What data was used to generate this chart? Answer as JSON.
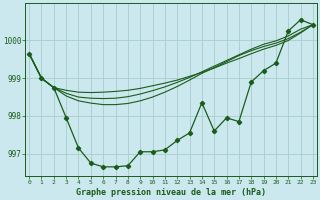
{
  "title": "Graphe pression niveau de la mer (hPa)",
  "bg_color": "#cce8ef",
  "grid_color": "#aacccc",
  "line_color": "#1a5c1a",
  "x_ticks": [
    0,
    1,
    2,
    3,
    4,
    5,
    6,
    7,
    8,
    9,
    10,
    11,
    12,
    13,
    14,
    15,
    16,
    17,
    18,
    19,
    20,
    21,
    22,
    23
  ],
  "ylim": [
    996.4,
    1001.0
  ],
  "yticks": [
    997,
    998,
    999,
    1000
  ],
  "series_main": [
    999.65,
    999.0,
    998.75,
    997.95,
    997.15,
    996.75,
    996.65,
    996.65,
    996.68,
    997.05,
    997.05,
    997.1,
    997.35,
    997.55,
    998.35,
    997.6,
    997.95,
    997.85,
    998.9,
    999.2,
    999.4,
    1000.25,
    1000.55,
    1000.42
  ],
  "series_smooth1": [
    999.65,
    999.0,
    998.75,
    998.68,
    998.63,
    998.62,
    998.63,
    998.65,
    998.68,
    998.73,
    998.8,
    998.87,
    998.95,
    999.05,
    999.15,
    999.27,
    999.4,
    999.52,
    999.65,
    999.77,
    999.87,
    1000.0,
    1000.2,
    1000.42
  ],
  "series_smooth2": [
    999.65,
    999.0,
    998.75,
    998.6,
    998.5,
    998.47,
    998.46,
    998.47,
    998.51,
    998.58,
    998.67,
    998.77,
    998.89,
    999.02,
    999.17,
    999.32,
    999.47,
    999.62,
    999.77,
    999.9,
    999.99,
    1000.12,
    1000.3,
    1000.42
  ],
  "series_smooth3": [
    999.65,
    999.0,
    998.75,
    998.53,
    998.4,
    998.34,
    998.3,
    998.3,
    998.33,
    998.4,
    998.5,
    998.63,
    998.78,
    998.95,
    999.13,
    999.28,
    999.44,
    999.6,
    999.73,
    999.84,
    999.93,
    1000.05,
    1000.22,
    1000.42
  ]
}
